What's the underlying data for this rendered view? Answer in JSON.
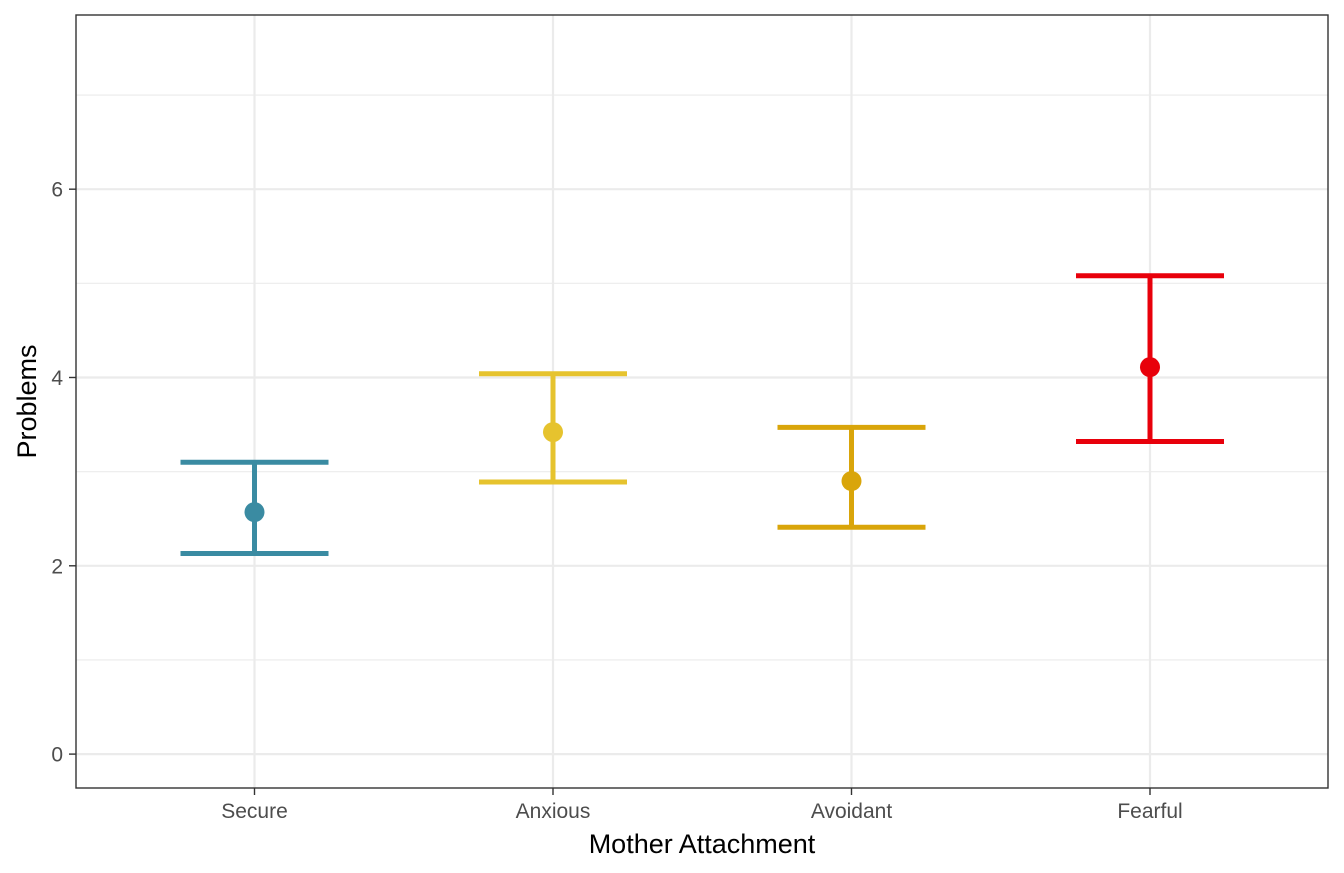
{
  "chart_data": {
    "type": "scatter",
    "subtype": "point-with-errorbars",
    "title": "",
    "xlabel": "Mother Attachment",
    "ylabel": "Problems",
    "categories": [
      "Secure",
      "Anxious",
      "Avoidant",
      "Fearful"
    ],
    "values": [
      2.57,
      3.42,
      2.9,
      4.11
    ],
    "lower": [
      2.13,
      2.89,
      2.41,
      3.32
    ],
    "upper": [
      3.1,
      4.04,
      3.47,
      5.08
    ],
    "colors": [
      "#3a8ba2",
      "#e6c32e",
      "#d9a50a",
      "#e8000b"
    ],
    "ylim": [
      -0.36,
      7.85
    ],
    "yticks": [
      0,
      2,
      4,
      6
    ],
    "ytick_labels": [
      "0",
      "2",
      "4",
      "6"
    ],
    "grid": true,
    "legend": "none",
    "theme": "bw"
  }
}
